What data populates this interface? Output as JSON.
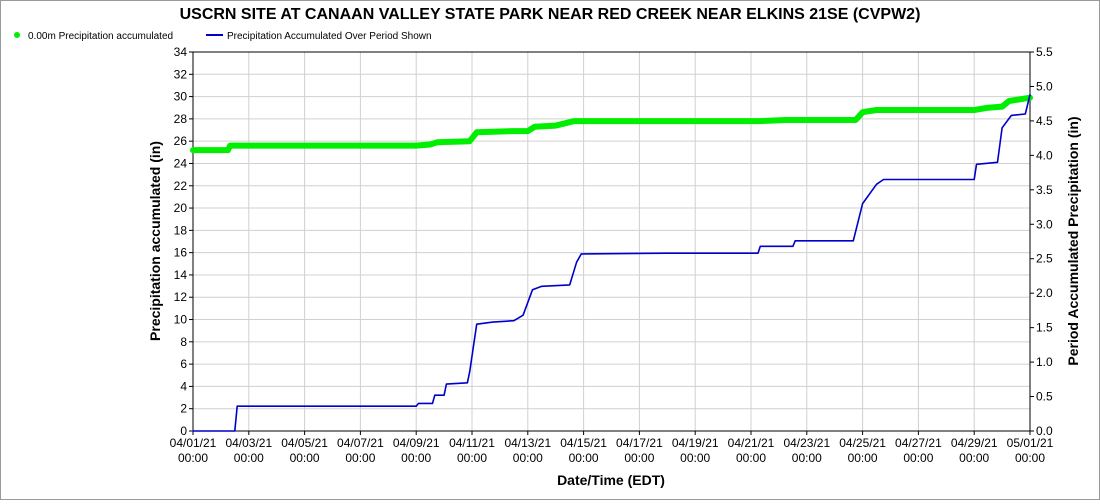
{
  "chart_data": {
    "type": "line",
    "title": "USCRN SITE AT CANAAN VALLEY STATE PARK NEAR RED CREEK NEAR ELKINS 21SE (CVPW2)",
    "xlabel": "Date/Time (EDT)",
    "ylabel_left": "Precipitation accumulated (in)",
    "ylabel_right": "Period Accumulated Precipitation (in)",
    "x_tick_dates": [
      "04/01/21",
      "04/03/21",
      "04/05/21",
      "04/07/21",
      "04/09/21",
      "04/11/21",
      "04/13/21",
      "04/15/21",
      "04/17/21",
      "04/19/21",
      "04/21/21",
      "04/23/21",
      "04/25/21",
      "04/27/21",
      "04/29/21",
      "05/01/21"
    ],
    "x_tick_time": "00:00",
    "xlim": [
      "2021-04-01 00:00",
      "2021-05-01 00:00"
    ],
    "ylim_left": [
      0,
      34
    ],
    "y_ticks_left": [
      "0",
      "2",
      "4",
      "6",
      "8",
      "10",
      "12",
      "14",
      "16",
      "18",
      "20",
      "22",
      "24",
      "26",
      "28",
      "30",
      "32",
      "34"
    ],
    "ylim_right": [
      0.0,
      5.5
    ],
    "y_ticks_right": [
      "0.0",
      "0.5",
      "1.0",
      "1.5",
      "2.0",
      "2.5",
      "3.0",
      "3.5",
      "4.0",
      "4.5",
      "5.0",
      "5.5"
    ],
    "grid": true,
    "legend_position": "top-left",
    "series": [
      {
        "name": "0.00m Precipitation accumulated",
        "axis": "left",
        "color": "#00ee00",
        "points": [
          [
            "2021-04-01 00:00",
            25.2
          ],
          [
            "2021-04-02 06:00",
            25.2
          ],
          [
            "2021-04-02 08:00",
            25.6
          ],
          [
            "2021-04-09 00:00",
            25.6
          ],
          [
            "2021-04-09 12:00",
            25.7
          ],
          [
            "2021-04-09 18:00",
            25.9
          ],
          [
            "2021-04-10 22:00",
            26.0
          ],
          [
            "2021-04-11 04:00",
            26.8
          ],
          [
            "2021-04-12 12:00",
            26.9
          ],
          [
            "2021-04-13 00:00",
            26.9
          ],
          [
            "2021-04-13 06:00",
            27.3
          ],
          [
            "2021-04-14 00:00",
            27.4
          ],
          [
            "2021-04-14 16:00",
            27.8
          ],
          [
            "2021-04-21 08:00",
            27.8
          ],
          [
            "2021-04-22 06:00",
            27.9
          ],
          [
            "2021-04-24 18:00",
            27.9
          ],
          [
            "2021-04-25 00:00",
            28.6
          ],
          [
            "2021-04-25 12:00",
            28.8
          ],
          [
            "2021-04-29 00:00",
            28.8
          ],
          [
            "2021-04-29 12:00",
            29.0
          ],
          [
            "2021-04-30 00:00",
            29.1
          ],
          [
            "2021-04-30 06:00",
            29.6
          ],
          [
            "2021-04-30 18:00",
            29.8
          ],
          [
            "2021-05-01 00:00",
            29.9
          ]
        ]
      },
      {
        "name": "Precipitation Accumulated Over Period Shown",
        "axis": "right",
        "color": "#0000cc",
        "points": [
          [
            "2021-04-01 00:00",
            0.0
          ],
          [
            "2021-04-02 12:00",
            0.0
          ],
          [
            "2021-04-02 14:00",
            0.36
          ],
          [
            "2021-04-09 00:00",
            0.36
          ],
          [
            "2021-04-09 02:00",
            0.4
          ],
          [
            "2021-04-09 14:00",
            0.4
          ],
          [
            "2021-04-09 16:00",
            0.52
          ],
          [
            "2021-04-10 00:00",
            0.52
          ],
          [
            "2021-04-10 02:00",
            0.68
          ],
          [
            "2021-04-10 20:00",
            0.7
          ],
          [
            "2021-04-10 22:00",
            0.86
          ],
          [
            "2021-04-11 04:00",
            1.55
          ],
          [
            "2021-04-11 18:00",
            1.58
          ],
          [
            "2021-04-12 12:00",
            1.6
          ],
          [
            "2021-04-12 20:00",
            1.68
          ],
          [
            "2021-04-13 04:00",
            2.05
          ],
          [
            "2021-04-13 12:00",
            2.1
          ],
          [
            "2021-04-14 12:00",
            2.12
          ],
          [
            "2021-04-14 18:00",
            2.45
          ],
          [
            "2021-04-14 22:00",
            2.57
          ],
          [
            "2021-04-18 00:00",
            2.58
          ],
          [
            "2021-04-21 06:00",
            2.58
          ],
          [
            "2021-04-21 08:00",
            2.68
          ],
          [
            "2021-04-22 12:00",
            2.68
          ],
          [
            "2021-04-22 14:00",
            2.76
          ],
          [
            "2021-04-24 16:00",
            2.76
          ],
          [
            "2021-04-25 00:00",
            3.3
          ],
          [
            "2021-04-25 12:00",
            3.58
          ],
          [
            "2021-04-25 18:00",
            3.65
          ],
          [
            "2021-04-29 00:00",
            3.65
          ],
          [
            "2021-04-29 02:00",
            3.87
          ],
          [
            "2021-04-29 20:00",
            3.9
          ],
          [
            "2021-04-30 00:00",
            4.4
          ],
          [
            "2021-04-30 08:00",
            4.58
          ],
          [
            "2021-04-30 20:00",
            4.6
          ],
          [
            "2021-05-01 00:00",
            4.88
          ]
        ]
      }
    ]
  }
}
